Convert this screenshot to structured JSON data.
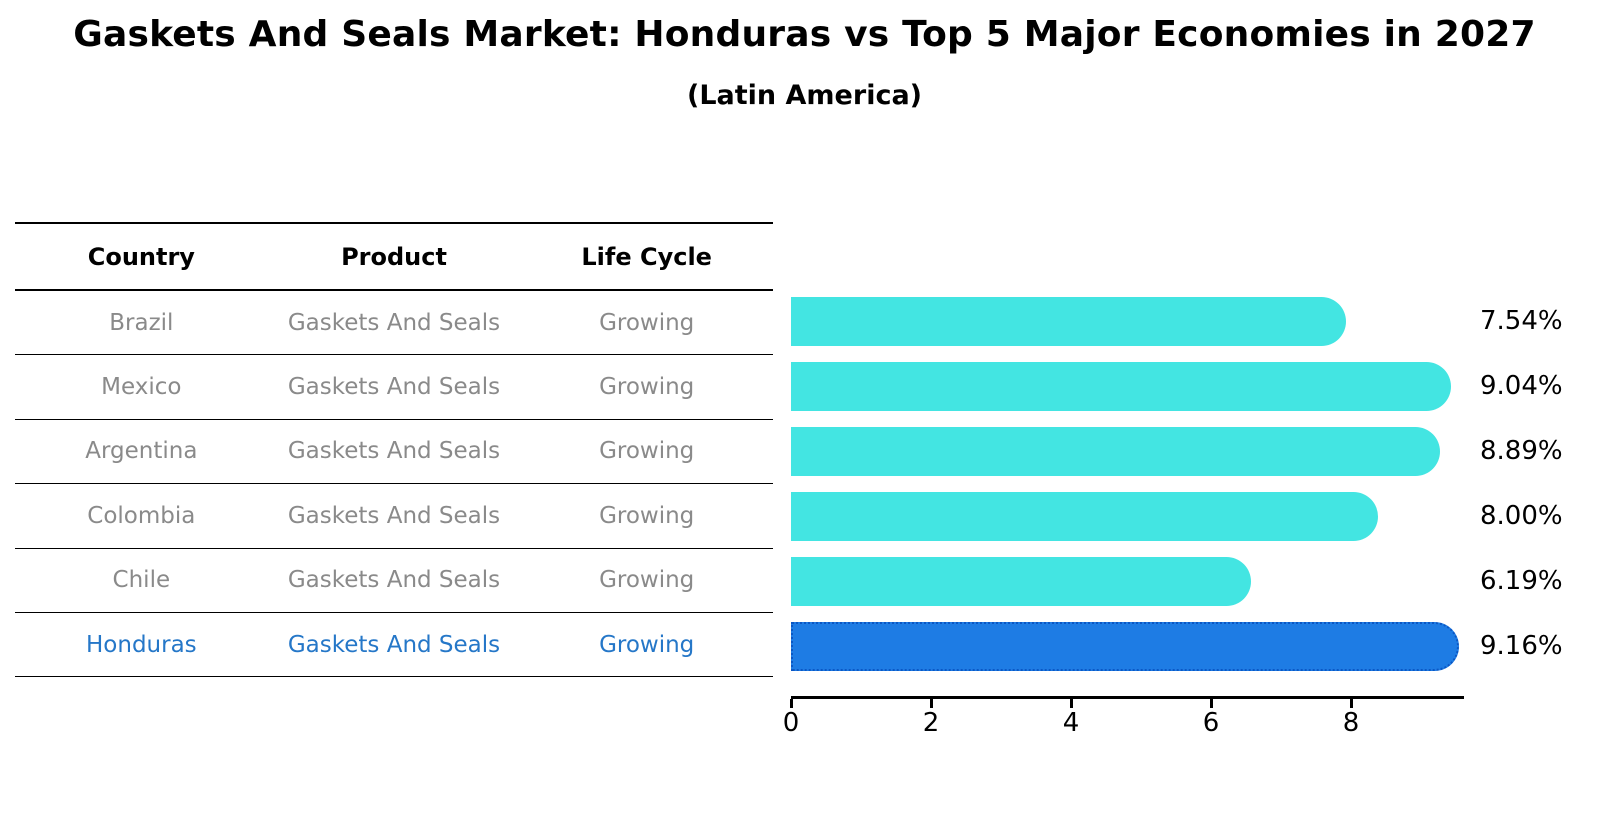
{
  "title": "Gaskets And Seals Market: Honduras vs Top 5 Major Economies in 2027",
  "subtitle": "(Latin America)",
  "table": {
    "headers": [
      "Country",
      "Product",
      "Life Cycle"
    ],
    "rows": [
      {
        "country": "Brazil",
        "product": "Gaskets And Seals",
        "life_cycle": "Growing",
        "highlight": false
      },
      {
        "country": "Mexico",
        "product": "Gaskets And Seals",
        "life_cycle": "Growing",
        "highlight": false
      },
      {
        "country": "Argentina",
        "product": "Gaskets And Seals",
        "life_cycle": "Growing",
        "highlight": false
      },
      {
        "country": "Colombia",
        "product": "Gaskets And Seals",
        "life_cycle": "Growing",
        "highlight": false
      },
      {
        "country": "Chile",
        "product": "Gaskets And Seals",
        "life_cycle": "Growing",
        "highlight": false
      },
      {
        "country": "Honduras",
        "product": "Gaskets And Seals",
        "life_cycle": "Growing",
        "highlight": true
      }
    ]
  },
  "chart_data": {
    "type": "bar",
    "orientation": "horizontal",
    "title": "Gaskets And Seals Market: Honduras vs Top 5 Major Economies in 2027",
    "subtitle": "(Latin America)",
    "categories": [
      "Brazil",
      "Mexico",
      "Argentina",
      "Colombia",
      "Chile",
      "Honduras"
    ],
    "values": [
      7.54,
      9.04,
      8.89,
      8.0,
      6.19,
      9.16
    ],
    "value_labels": [
      "7.54%",
      "9.04%",
      "8.89%",
      "8.00%",
      "6.19%",
      "9.16%"
    ],
    "highlight_index": 5,
    "xlabel": "",
    "ylabel": "",
    "xlim": [
      0,
      9.6
    ],
    "xticks": [
      0,
      2,
      4,
      6,
      8
    ],
    "grid": false,
    "legend": "none"
  },
  "colors": {
    "background": "#ffffff",
    "title_text": "#000000",
    "bar": "#43e5e2",
    "highlight_bar": "#1e7ce4",
    "highlight_bar_edge": "#0b57c4",
    "axis": "#000000",
    "tick_text": "#000000",
    "value_text": "#000000",
    "header_text": "#000000",
    "row_text": "#8a8a8a",
    "highlight_row_text": "#2577c8",
    "table_line": "#000000"
  }
}
